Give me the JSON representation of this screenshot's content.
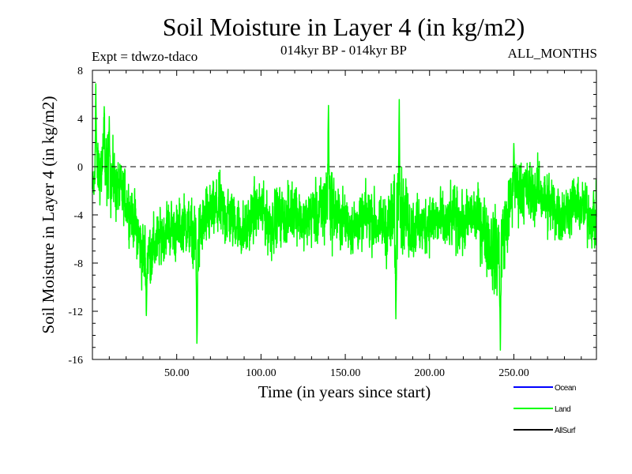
{
  "chart_data": {
    "type": "line",
    "title": "Soil Moisture in Layer 4 (in kg/m2)",
    "subtitle_left": "Expt = tdwzo-tdaco",
    "subtitle_center": "014kyr BP - 014kyr BP",
    "subtitle_right": "ALL_MONTHS",
    "xlabel": "Time (in years since start)",
    "ylabel": "Soil Moisture in Layer 4 (in kg/m2)",
    "xlim": [
      0,
      299
    ],
    "ylim": [
      -16,
      8
    ],
    "xticks": [
      50,
      100,
      150,
      200,
      250
    ],
    "xtick_labels": [
      "50.00",
      "100.00",
      "150.00",
      "200.00",
      "250.00"
    ],
    "yticks": [
      -16,
      -12,
      -8,
      -4,
      0,
      4,
      8
    ],
    "ytick_labels": [
      "-16",
      "-12",
      "-8",
      "-4",
      "0",
      "4",
      "8"
    ],
    "reference_line": 0,
    "legend_position": "bottom-right, below plot",
    "legend": [
      {
        "name": "Ocean",
        "color": "#0000ff"
      },
      {
        "name": "Land",
        "color": "#00ff00"
      },
      {
        "name": "AllSurf",
        "color": "#000000"
      }
    ],
    "series": [
      {
        "name": "Land",
        "color": "#00ff00",
        "x_start": 0,
        "x_step": 0.0833,
        "anchor_x": [
          0,
          3,
          6,
          10,
          14,
          18,
          22,
          26,
          30,
          35,
          40,
          45,
          50,
          55,
          60,
          62,
          65,
          70,
          75,
          80,
          85,
          90,
          95,
          100,
          105,
          110,
          115,
          120,
          125,
          130,
          135,
          140,
          145,
          150,
          155,
          160,
          165,
          170,
          175,
          180,
          182,
          185,
          190,
          195,
          200,
          205,
          210,
          215,
          220,
          225,
          230,
          235,
          240,
          242,
          245,
          250,
          255,
          260,
          265,
          270,
          275,
          280,
          285,
          290,
          295,
          299
        ],
        "anchor_mean": [
          -2,
          -0.5,
          0,
          -1,
          -1.5,
          -2.5,
          -3.5,
          -5,
          -7.5,
          -7,
          -6,
          -5,
          -5.5,
          -4.5,
          -6,
          -7,
          -5,
          -4,
          -3.5,
          -4,
          -4.5,
          -5.5,
          -4,
          -3.5,
          -5,
          -4,
          -4.5,
          -3,
          -5,
          -4,
          -4,
          -2.5,
          -4,
          -4.5,
          -5,
          -4.5,
          -4,
          -5,
          -5,
          -4.5,
          -3,
          -4,
          -5,
          -5,
          -4.5,
          -4.5,
          -5,
          -4,
          -5,
          -4,
          -4.5,
          -6,
          -7.5,
          -6.5,
          -5,
          -2,
          -1.5,
          -2.5,
          -2,
          -3,
          -3.5,
          -4,
          -3,
          -3.5,
          -4,
          -4.5
        ],
        "anchor_amp": [
          2.5,
          3.5,
          4.5,
          4,
          3.5,
          3,
          3,
          3,
          4,
          3.5,
          3,
          3,
          3,
          3,
          3.5,
          5,
          3.5,
          3,
          3.5,
          3.5,
          3,
          3,
          3,
          3,
          3.5,
          3,
          3,
          3.5,
          3,
          3,
          3.5,
          5,
          3.5,
          3,
          3,
          3,
          3.5,
          3,
          3.5,
          5,
          5,
          4,
          3.5,
          3,
          3,
          3.5,
          3,
          3.5,
          3,
          3,
          3.5,
          4,
          4.5,
          5,
          4,
          3.5,
          3.5,
          3.5,
          3,
          3.5,
          3.5,
          3,
          3,
          3,
          3,
          3.5
        ],
        "peaks": [
          [
            2,
            6.9
          ],
          [
            7,
            5.0
          ],
          [
            10,
            4.2
          ],
          [
            32,
            -12.4
          ],
          [
            62,
            -15.0
          ],
          [
            140,
            5.3
          ],
          [
            180,
            -12.8
          ],
          [
            182,
            5.8
          ],
          [
            242,
            -15.4
          ],
          [
            250,
            2.0
          ]
        ]
      }
    ]
  }
}
